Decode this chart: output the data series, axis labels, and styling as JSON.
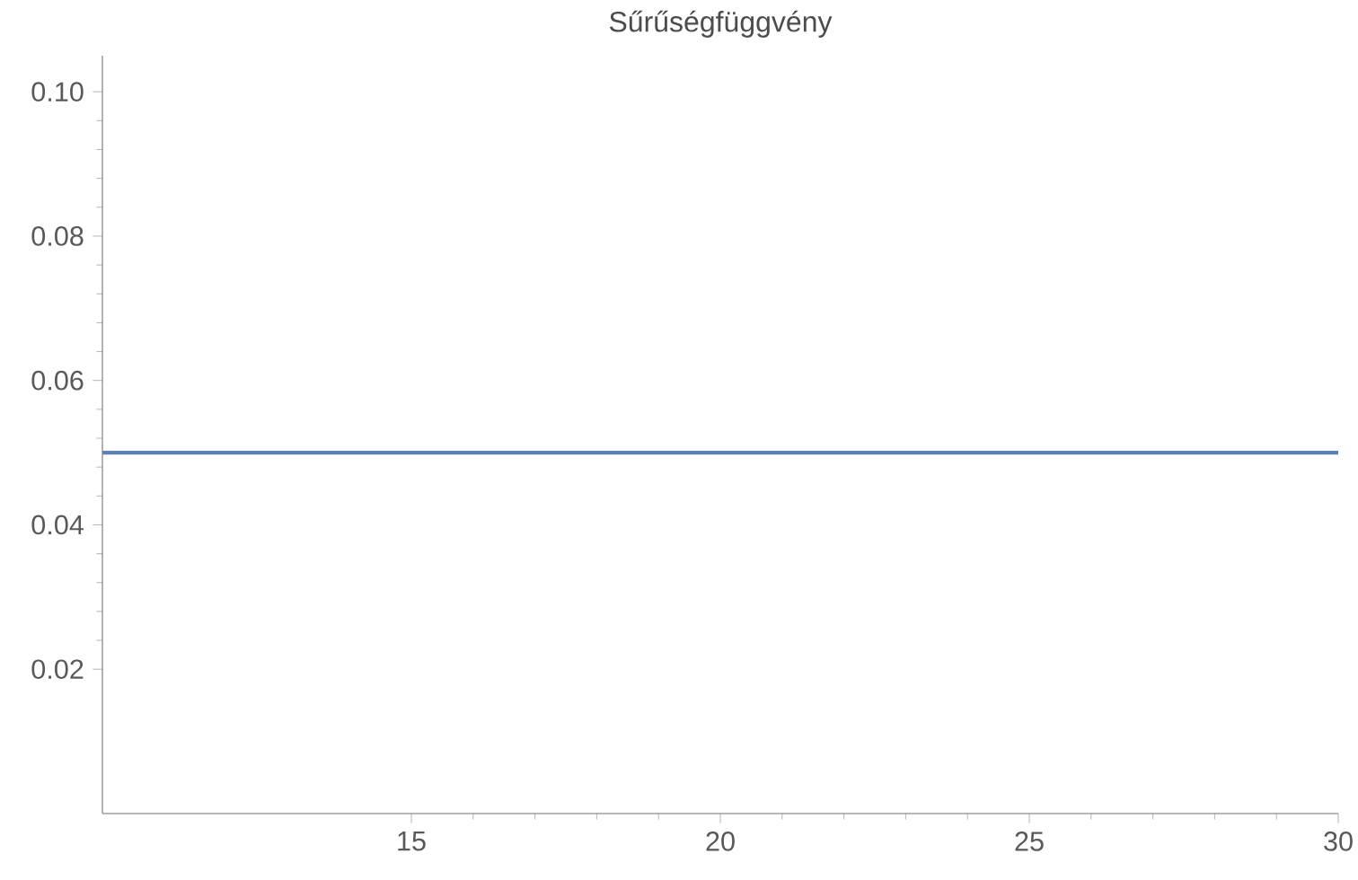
{
  "chart_data": {
    "type": "line",
    "title": "Sűrűségfüggvény",
    "x": [
      10,
      30
    ],
    "series": [
      {
        "color": "#5e81b5",
        "values": [
          0.05,
          0.05
        ]
      }
    ],
    "xlim": [
      10,
      30
    ],
    "ylim": [
      0,
      0.105
    ],
    "xticks": [
      15,
      20,
      25,
      30
    ],
    "yticks": [
      {
        "value": 0.02,
        "label": "0.02"
      },
      {
        "value": 0.04,
        "label": "0.04"
      },
      {
        "value": 0.06,
        "label": "0.06"
      },
      {
        "value": 0.08,
        "label": "0.08"
      },
      {
        "value": 0.1,
        "label": "0.10"
      }
    ],
    "marker": "none",
    "line_style": "solid"
  }
}
